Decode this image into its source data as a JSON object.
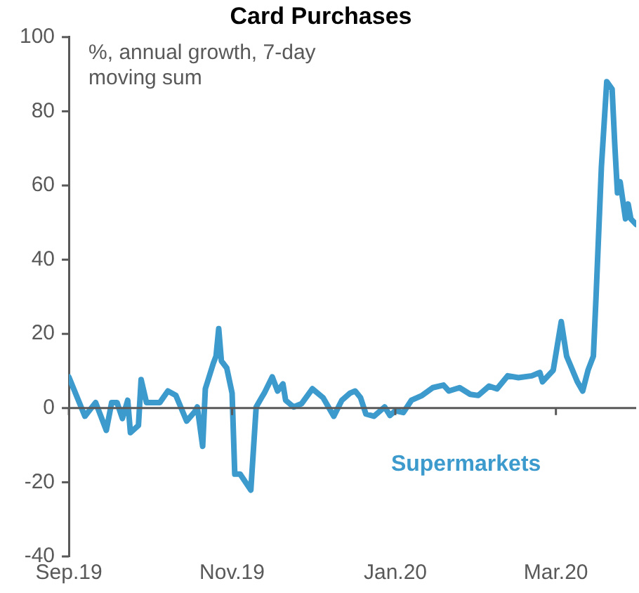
{
  "chart_data": {
    "type": "line",
    "title": "Card Purchases",
    "annotations": [
      "%, annual growth, 7-day moving sum"
    ],
    "x": [
      "2019-09-01",
      "2019-09-07",
      "2019-09-11",
      "2019-09-15",
      "2019-09-17",
      "2019-09-19",
      "2019-09-21",
      "2019-09-23",
      "2019-09-24",
      "2019-09-27",
      "2019-09-28",
      "2019-09-30",
      "2019-10-05",
      "2019-10-08",
      "2019-10-11",
      "2019-10-15",
      "2019-10-18",
      "2019-10-19",
      "2019-10-21",
      "2019-10-22",
      "2019-10-25",
      "2019-10-26",
      "2019-10-27",
      "2019-10-28",
      "2019-10-30",
      "2019-11-01",
      "2019-11-02",
      "2019-11-04",
      "2019-11-08",
      "2019-11-10",
      "2019-11-12",
      "2019-11-13",
      "2019-11-16",
      "2019-11-18",
      "2019-11-20",
      "2019-11-21",
      "2019-11-24",
      "2019-11-27",
      "2019-12-01",
      "2019-12-05",
      "2019-12-09",
      "2019-12-12",
      "2019-12-15",
      "2019-12-17",
      "2019-12-19",
      "2019-12-21",
      "2019-12-24",
      "2019-12-28",
      "2019-12-30",
      "2020-01-01",
      "2020-01-04",
      "2020-01-07",
      "2020-01-11",
      "2020-01-15",
      "2020-01-19",
      "2020-01-21",
      "2020-01-25",
      "2020-01-29",
      "2020-02-01",
      "2020-02-05",
      "2020-02-08",
      "2020-02-12",
      "2020-02-16",
      "2020-02-21",
      "2020-02-24",
      "2020-02-25",
      "2020-02-29",
      "2020-03-03",
      "2020-03-05",
      "2020-03-09",
      "2020-03-11",
      "2020-03-13",
      "2020-03-15",
      "2020-03-16",
      "2020-03-18",
      "2020-03-20",
      "2020-03-22",
      "2020-03-23",
      "2020-03-24",
      "2020-03-25",
      "2020-03-27",
      "2020-03-28",
      "2020-03-29",
      "2020-03-31"
    ],
    "series": [
      {
        "name": "Supermarkets",
        "color": "#3c9acd",
        "values": [
          8.4,
          -2.2,
          1.5,
          -6,
          1.5,
          1.5,
          -2.8,
          2.1,
          -6.6,
          -4.7,
          7.7,
          1.5,
          1.5,
          4.6,
          3.4,
          -3.5,
          -1,
          0.3,
          -10.3,
          5.2,
          12.1,
          14,
          21.4,
          12.7,
          10.8,
          4,
          -17.8,
          -17.8,
          -22.1,
          0.3,
          2.8,
          4,
          8.4,
          4.6,
          6.5,
          2.1,
          0.3,
          1.2,
          5.2,
          2.8,
          -2.2,
          2.1,
          4,
          4.6,
          2.8,
          -1.6,
          -2.2,
          0.3,
          -2,
          -0.7,
          -1.2,
          2.1,
          3.4,
          5.5,
          6.2,
          4.6,
          5.5,
          3.7,
          3.4,
          5.9,
          5.2,
          8.7,
          8.2,
          8.7,
          9.6,
          7.1,
          10.2,
          23.3,
          14,
          7.1,
          4.6,
          10.2,
          14,
          30,
          65,
          88,
          86,
          71,
          58,
          61,
          51,
          55,
          51,
          49.5
        ]
      }
    ],
    "xlim": [
      "2019-09-01",
      "2020-03-31"
    ],
    "xticks": [
      {
        "value": "2019-09-01",
        "label": "Sep.19"
      },
      {
        "value": "2019-11-01",
        "label": "Nov.19"
      },
      {
        "value": "2020-01-01",
        "label": "Jan.20"
      },
      {
        "value": "2020-03-01",
        "label": "Mar.20"
      }
    ],
    "ylim": [
      -40,
      100
    ],
    "yticks": [
      -40,
      -20,
      0,
      20,
      40,
      60,
      80,
      100
    ],
    "ref_lines": [
      {
        "axis": "y",
        "value": 0,
        "color": "#595959"
      }
    ],
    "grid": false,
    "legend": false,
    "marker": "none",
    "line_style": "solid"
  }
}
